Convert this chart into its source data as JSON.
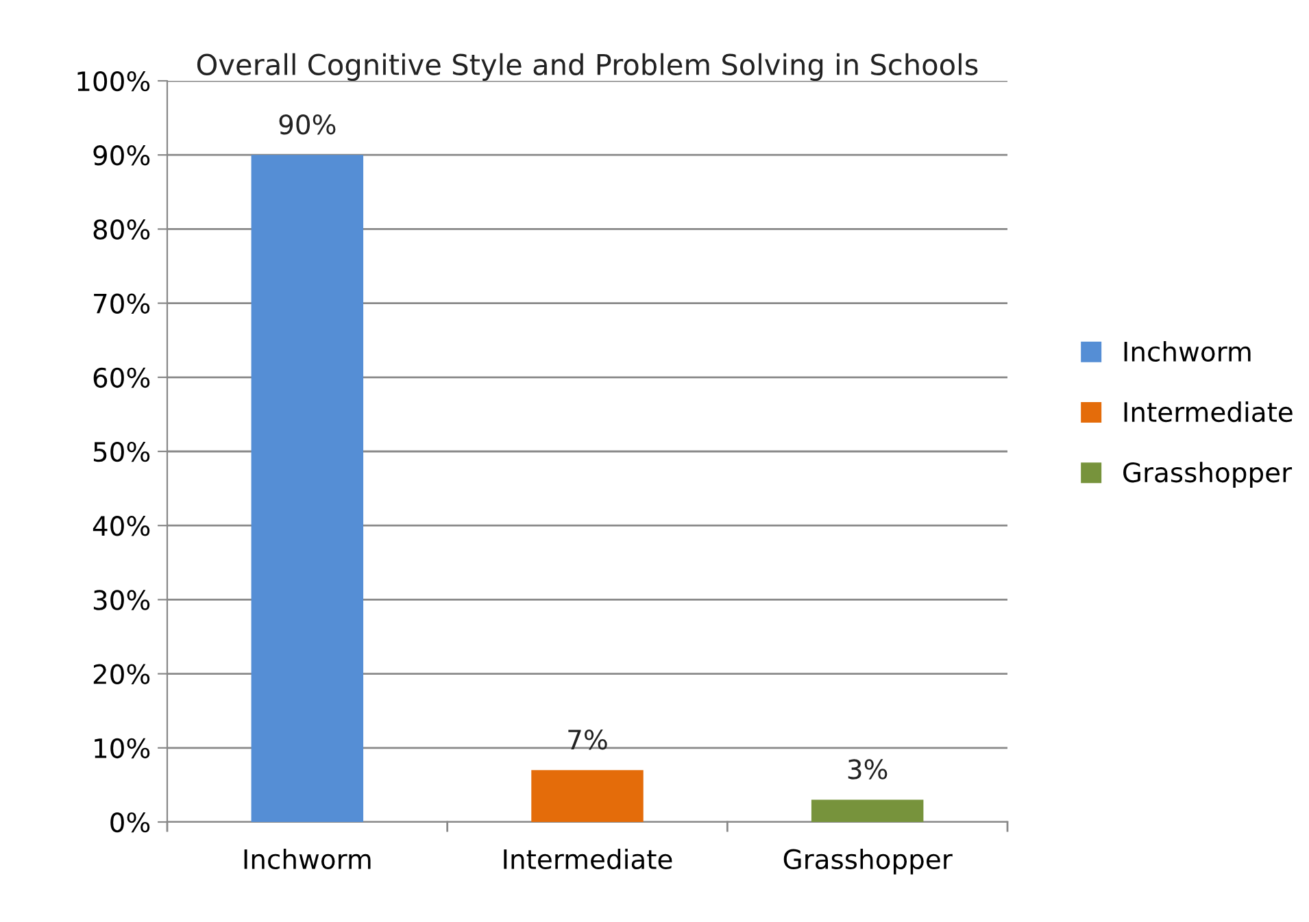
{
  "chart_data": {
    "type": "bar",
    "title": "Overall Cognitive Style and Problem Solving in Schools",
    "categories": [
      "Inchworm",
      "Intermediate",
      "Grasshopper"
    ],
    "series": [
      {
        "name": "Inchworm",
        "color": "#558ed5",
        "values": [
          90,
          null,
          null
        ]
      },
      {
        "name": "Intermediate",
        "color": "#e46c0a",
        "values": [
          null,
          7,
          null
        ]
      },
      {
        "name": "Grasshopper",
        "color": "#77933c",
        "values": [
          null,
          null,
          3
        ]
      }
    ],
    "ylim": [
      0,
      100
    ],
    "yticks": [
      {
        "value": 0,
        "label": "0%"
      },
      {
        "value": 10,
        "label": "10%"
      },
      {
        "value": 20,
        "label": "20%"
      },
      {
        "value": 30,
        "label": "30%"
      },
      {
        "value": 40,
        "label": "40%"
      },
      {
        "value": 50,
        "label": "50%"
      },
      {
        "value": 60,
        "label": "60%"
      },
      {
        "value": 70,
        "label": "70%"
      },
      {
        "value": 80,
        "label": "80%"
      },
      {
        "value": 90,
        "label": "90%"
      },
      {
        "value": 100,
        "label": "100%"
      }
    ],
    "value_labels": [
      "90%",
      "7%",
      "3%"
    ],
    "grid": "y",
    "legend": "right"
  }
}
